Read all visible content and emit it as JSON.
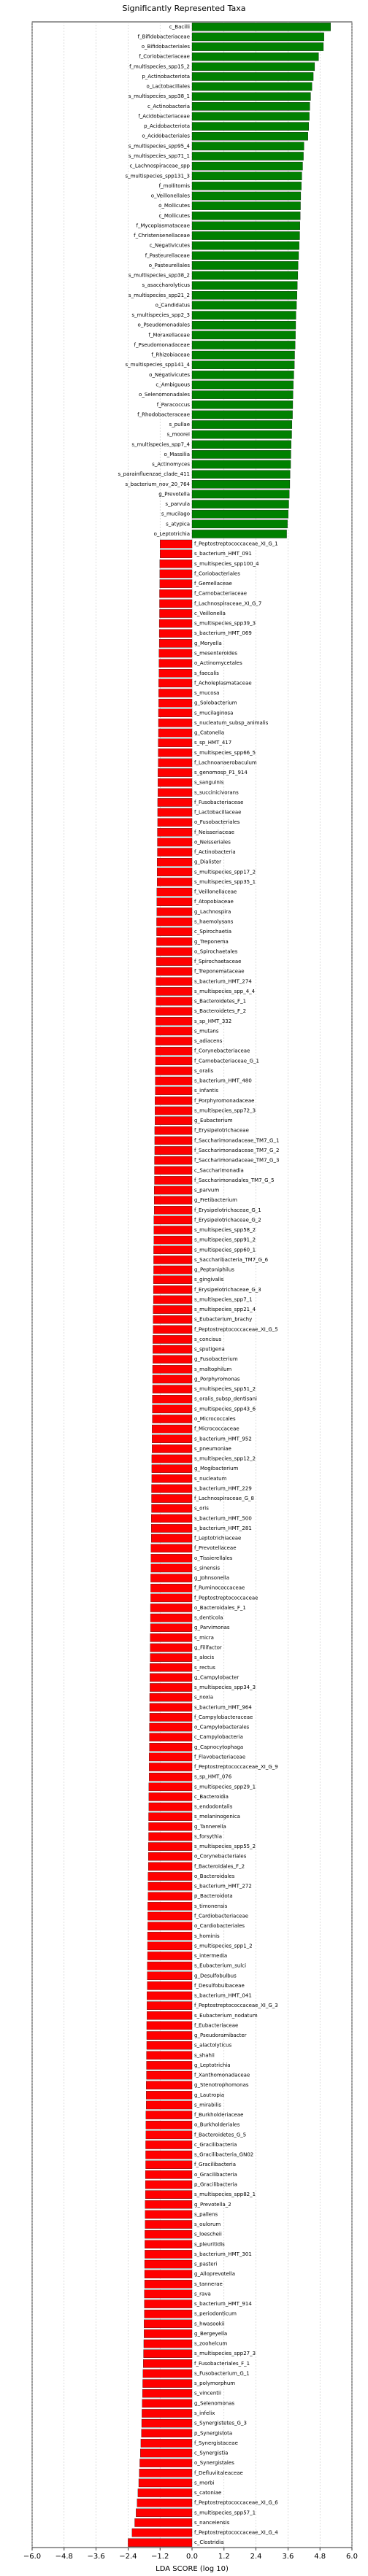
{
  "chart_data": {
    "type": "barh",
    "title": "Significantly Represented Taxa",
    "x_label": "LDA SCORE (log 10)",
    "color_positive": "#008000",
    "color_negative": "#ff0000",
    "xlim": [
      -6,
      6
    ],
    "xticks": [
      {
        "value": -6,
        "label": "−6.0"
      },
      {
        "value": -4.8,
        "label": "−4.8"
      },
      {
        "value": -3.6,
        "label": "−3.6"
      },
      {
        "value": -2.4,
        "label": "−2.4"
      },
      {
        "value": -1.2,
        "label": "−1.2"
      },
      {
        "value": 0,
        "label": "0.0"
      },
      {
        "value": 1.2,
        "label": "1.2"
      },
      {
        "value": 2.4,
        "label": "2.4"
      },
      {
        "value": 3.6,
        "label": "3.6"
      },
      {
        "value": 4.8,
        "label": "4.8"
      },
      {
        "value": 6,
        "label": "6.0"
      }
    ],
    "grid": true,
    "categories": [
      "c_Bacilli",
      "f_Bifidobacteriaceae",
      "o_Bifidobacteriales",
      "f_Coriobacteriaceae",
      "f_multispecies_spp15_2",
      "p_Actinobacteriota",
      "o_Lactobacillales",
      "s_multispecies_spp38_1",
      "c_Actinobacteria",
      "f_Acidobacteriaceae",
      "p_Acidobacteriota",
      "o_Acidobacteriales",
      "s_multispecies_spp95_4",
      "s_multispecies_spp71_1",
      "c_Lachnospiraceae_spp",
      "s_multispecies_spp131_3",
      "f_mollitomis",
      "o_Veillonellales",
      "o_Mollicutes",
      "c_Mollicutes",
      "f_Mycoplasmataceae",
      "f_Christensenellaceae",
      "c_Negativicutes",
      "f_Pasteurellaceae",
      "o_Pasteurellales",
      "s_multispecies_spp38_2",
      "s_asaccharolyticus",
      "s_multispecies_spp21_2",
      "o_Candidatus",
      "s_multispecies_spp2_3",
      "o_Pseudomonadales",
      "f_Moraxellaceae",
      "f_Pseudomonadaceae",
      "f_Rhizobiaceae",
      "s_multispecies_spp141_4",
      "o_Negativicutes",
      "c_Ambiguous",
      "o_Selenomonadales",
      "f_Paracoccus",
      "f_Rhodobacteraceae",
      "s_pullae",
      "s_moorei",
      "s_multispecies_spp7_4",
      "o_Massilia",
      "s_Actinomyces",
      "s_parainfluenzae_clade_411",
      "s_bacterium_nov_20_764",
      "g_Prevotella",
      "s_parvula",
      "s_mucilago",
      "s_atypica",
      "o_Leptotrichia",
      "f_Peptostreptococcaceae_XI_G_1",
      "s_bacterium_HMT_091",
      "s_multispecies_spp100_4",
      "f_Coriobacteriales",
      "f_Gemellaceae",
      "f_Carnobacteriaceae",
      "f_Lachnospiraceae_XI_G_7",
      "c_Veillonella",
      "s_multispecies_spp39_3",
      "s_bacterium_HMT_069",
      "g_Moryella",
      "s_mesenteroides",
      "o_Actinomycetales",
      "s_faecalis",
      "f_Acholeplasmataceae",
      "s_mucosa",
      "g_Solobacterium",
      "s_mucilaginosa",
      "s_nucleatum_subsp_animalis",
      "g_Catonella",
      "s_sp_HMT_417",
      "s_multispecies_spp66_5",
      "f_Lachnoanaerobaculum",
      "s_genomosp_P1_914",
      "s_sanguinis",
      "s_succinicivorans",
      "f_Fusobacteriaceae",
      "f_Lactobacillaceae",
      "o_Fusobacteriales",
      "f_Neisseriaceae",
      "o_Neisseriales",
      "f_Actinobacteria",
      "g_Dialister",
      "s_multispecies_spp17_2",
      "s_multispecies_spp35_1",
      "f_Veillonellaceae",
      "f_Atopobiaceae",
      "g_Lachnospira",
      "s_haemolysans",
      "c_Spirochaetia",
      "g_Treponema",
      "o_Spirochaetales",
      "f_Spirochaetaceae",
      "f_Treponemataceae",
      "s_bacterium_HMT_274",
      "s_multispecies_spp_4_4",
      "s_Bacteroidetes_F_1",
      "s_Bacteroidetes_F_2",
      "s_sp_HMT_332",
      "s_mutans",
      "s_adiacens",
      "f_Corynebacteriaceae",
      "f_Carnobacteriaceae_G_1",
      "s_oralis",
      "s_bacterium_HMT_480",
      "s_infantis",
      "f_Porphyromonadaceae",
      "s_multispecies_spp72_3",
      "g_Eubacterium",
      "f_Erysipelotrichaceae",
      "f_Saccharimonadaceae_TM7_G_1",
      "f_Saccharimonadaceae_TM7_G_2",
      "f_Saccharimonadaceae_TM7_G_3",
      "c_Saccharimonadia",
      "f_Saccharimonadales_TM7_G_5",
      "s_parvum",
      "g_Fretibacterium",
      "f_Erysipelotrichaceae_G_1",
      "f_Erysipelotrichaceae_G_2",
      "s_multispecies_spp58_2",
      "s_multispecies_spp91_2",
      "s_multispecies_spp60_1",
      "s_Saccharibacteria_TM7_G_6",
      "g_Peptoniphilus",
      "s_gingivalis",
      "f_Erysipelotrichaceae_G_3",
      "s_multispecies_spp7_1",
      "s_multispecies_spp21_4",
      "s_Eubacterium_brachy",
      "f_Peptostreptococcaceae_XI_G_5",
      "s_concisus",
      "s_sputigena",
      "g_Fusobacterium",
      "s_maltophilum",
      "g_Porphyromonas",
      "s_multispecies_spp51_2",
      "s_oralis_subsp_dentisani",
      "s_multispecies_spp43_6",
      "o_Micrococcales",
      "f_Micrococcaceae",
      "s_bacterium_HMT_952",
      "s_pneumoniae",
      "s_multispecies_spp12_2",
      "g_Mogibacterium",
      "s_nucleatum",
      "s_bacterium_HMT_229",
      "f_Lachnospiraceae_G_8",
      "s_oris",
      "s_bacterium_HMT_500",
      "s_bacterium_HMT_281",
      "f_Leptotrichiaceae",
      "f_Prevotellaceae",
      "o_Tissierellales",
      "s_sinensis",
      "g_Johnsonella",
      "f_Ruminococcaceae",
      "f_Peptostreptococcaceae",
      "o_Bacteroidales_F_1",
      "s_denticola",
      "g_Parvimonas",
      "s_micra",
      "g_Filifactor",
      "s_alocis",
      "s_rectus",
      "g_Campylobacter",
      "s_multispecies_spp34_3",
      "s_noxia",
      "s_bacterium_HMT_964",
      "f_Campylobacteraceae",
      "o_Campylobacterales",
      "c_Campylobacteria",
      "g_Capnocytophaga",
      "f_Flavobacteriaceae",
      "f_Peptostreptococcaceae_XI_G_9",
      "s_sp_HMT_076",
      "s_multispecies_spp29_1",
      "c_Bacteroidia",
      "s_endodontalis",
      "s_melaninogenica",
      "g_Tannerella",
      "s_forsythia",
      "s_multispecies_spp55_2",
      "o_Corynebacteriales",
      "f_Bacteroidales_F_2",
      "o_Bacteroidales",
      "s_bacterium_HMT_272",
      "p_Bacteroidota",
      "s_timonensis",
      "f_Cardiobacteriaceae",
      "o_Cardiobacteriales",
      "s_hominis",
      "s_multispecies_spp1_2",
      "s_intermedia",
      "s_Eubacterium_sulci",
      "g_Desulfobulbus",
      "f_Desulfobulbaceae",
      "s_bacterium_HMT_041",
      "f_Peptostreptococcaceae_XI_G_3",
      "s_Eubacterium_nodatum",
      "f_Eubacteriaceae",
      "g_Pseudoramibacter",
      "s_alactolyticus",
      "s_shahii",
      "g_Leptotrichia",
      "f_Xanthomonadaceae",
      "g_Stenotrophomonas",
      "g_Lautropia",
      "s_mirabilis",
      "f_Burkholderiaceae",
      "o_Burkholderiales",
      "f_Bacteroidetes_G_5",
      "c_Gracilibacteria",
      "s_Gracilibacteria_GN02",
      "f_Gracilibacteria",
      "o_Gracilibacteria",
      "p_Gracilibacteria",
      "s_multispecies_spp82_1",
      "g_Prevotella_2",
      "s_pallens",
      "s_oulorum",
      "s_loescheii",
      "s_pleuritidis",
      "s_bacterium_HMT_301",
      "s_pasteri",
      "g_Alloprevotella",
      "s_tannerae",
      "s_rava",
      "s_bacterium_HMT_914",
      "s_periodonticum",
      "s_hwasookii",
      "g_Bergeyella",
      "s_zoohelcum",
      "s_multispecies_spp27_3",
      "f_Fusobacteriales_F_1",
      "s_Fusobacterium_G_1",
      "s_polymorphum",
      "s_vincentii",
      "g_Selenomonas",
      "s_infelix",
      "s_Synergistetes_G_3",
      "p_Synergistota",
      "f_Synergistaceae",
      "c_Synergistia",
      "o_Synergistales",
      "f_Defluviitaleaceae",
      "s_morbi",
      "s_catoniae",
      "f_Peptostreptococcaceae_XI_G_6",
      "s_multispecies_spp57_1",
      "s_nanceiensis",
      "f_Peptostreptococcaceae_XI_G_4",
      "c_Clostridia"
    ],
    "values": [
      5.2,
      4.95,
      4.93,
      4.75,
      4.6,
      4.55,
      4.5,
      4.45,
      4.42,
      4.4,
      4.38,
      4.35,
      4.2,
      4.18,
      4.15,
      4.12,
      4.1,
      4.08,
      4.07,
      4.06,
      4.05,
      4.04,
      4.02,
      4.0,
      3.98,
      3.97,
      3.95,
      3.94,
      3.92,
      3.9,
      3.89,
      3.88,
      3.87,
      3.85,
      3.84,
      3.82,
      3.8,
      3.79,
      3.78,
      3.77,
      3.75,
      3.74,
      3.72,
      3.71,
      3.7,
      3.68,
      3.67,
      3.65,
      3.63,
      3.61,
      3.58,
      3.55,
      -1.2,
      -1.2,
      -1.21,
      -1.21,
      -1.21,
      -1.22,
      -1.22,
      -1.22,
      -1.23,
      -1.23,
      -1.23,
      -1.24,
      -1.24,
      -1.24,
      -1.25,
      -1.25,
      -1.25,
      -1.26,
      -1.26,
      -1.26,
      -1.27,
      -1.27,
      -1.27,
      -1.28,
      -1.28,
      -1.28,
      -1.29,
      -1.29,
      -1.29,
      -1.3,
      -1.3,
      -1.3,
      -1.31,
      -1.31,
      -1.31,
      -1.32,
      -1.32,
      -1.32,
      -1.33,
      -1.33,
      -1.33,
      -1.34,
      -1.34,
      -1.34,
      -1.35,
      -1.35,
      -1.35,
      -1.36,
      -1.36,
      -1.36,
      -1.37,
      -1.37,
      -1.37,
      -1.38,
      -1.38,
      -1.38,
      -1.39,
      -1.39,
      -1.39,
      -1.4,
      -1.4,
      -1.4,
      -1.41,
      -1.41,
      -1.41,
      -1.42,
      -1.42,
      -1.42,
      -1.43,
      -1.43,
      -1.43,
      -1.44,
      -1.44,
      -1.44,
      -1.45,
      -1.45,
      -1.45,
      -1.46,
      -1.46,
      -1.46,
      -1.47,
      -1.47,
      -1.47,
      -1.48,
      -1.48,
      -1.48,
      -1.49,
      -1.49,
      -1.49,
      -1.5,
      -1.5,
      -1.5,
      -1.51,
      -1.51,
      -1.51,
      -1.52,
      -1.52,
      -1.52,
      -1.53,
      -1.53,
      -1.53,
      -1.54,
      -1.54,
      -1.54,
      -1.55,
      -1.55,
      -1.55,
      -1.56,
      -1.56,
      -1.56,
      -1.57,
      -1.57,
      -1.57,
      -1.58,
      -1.58,
      -1.58,
      -1.59,
      -1.59,
      -1.59,
      -1.6,
      -1.6,
      -1.6,
      -1.61,
      -1.61,
      -1.61,
      -1.62,
      -1.62,
      -1.62,
      -1.63,
      -1.63,
      -1.63,
      -1.64,
      -1.64,
      -1.64,
      -1.65,
      -1.65,
      -1.65,
      -1.66,
      -1.66,
      -1.66,
      -1.67,
      -1.67,
      -1.67,
      -1.68,
      -1.68,
      -1.68,
      -1.69,
      -1.69,
      -1.69,
      -1.7,
      -1.7,
      -1.7,
      -1.71,
      -1.71,
      -1.71,
      -1.72,
      -1.72,
      -1.72,
      -1.73,
      -1.73,
      -1.73,
      -1.74,
      -1.74,
      -1.74,
      -1.75,
      -1.75,
      -1.75,
      -1.76,
      -1.76,
      -1.76,
      -1.77,
      -1.77,
      -1.77,
      -1.78,
      -1.78,
      -1.78,
      -1.79,
      -1.79,
      -1.79,
      -1.8,
      -1.8,
      -1.81,
      -1.82,
      -1.83,
      -1.84,
      -1.85,
      -1.86,
      -1.87,
      -1.88,
      -1.89,
      -1.9,
      -1.92,
      -1.94,
      -1.96,
      -1.98,
      -2.0,
      -2.03,
      -2.06,
      -2.1,
      -2.15,
      -2.25,
      -2.4
    ]
  }
}
